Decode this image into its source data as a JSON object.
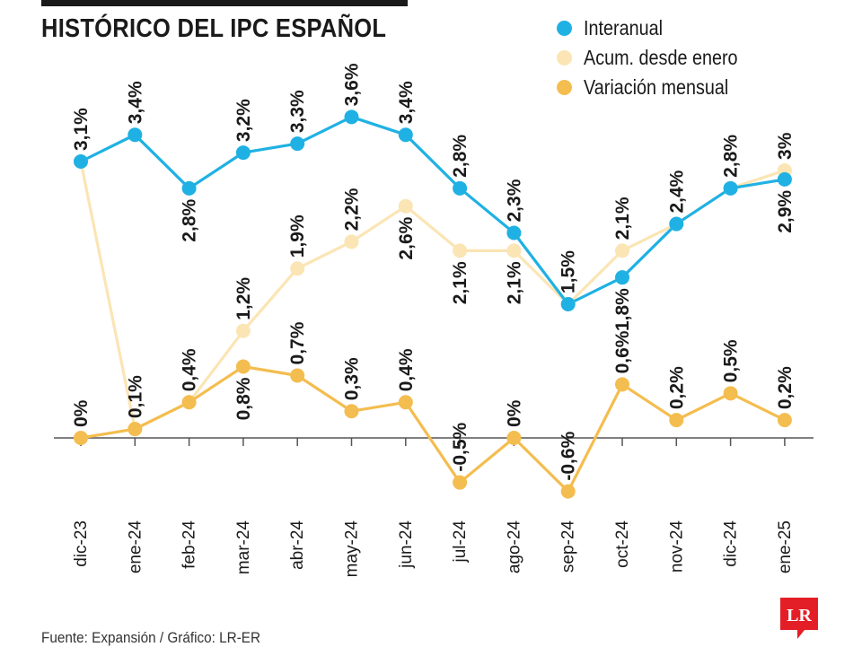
{
  "title": "HISTÓRICO DEL IPC ESPAÑOL",
  "source": "Fuente: Expansión / Gráfico: LR-ER",
  "logo_text": "LR",
  "colors": {
    "interanual": "#1fb1e3",
    "acumulado": "#fbe5b4",
    "mensual": "#f4bd4f",
    "logo": "#e41e26"
  },
  "chart_data": {
    "type": "line",
    "categories": [
      "dic-23",
      "ene-24",
      "feb-24",
      "mar-24",
      "abr-24",
      "may-24",
      "jun-24",
      "jul-24",
      "ago-24",
      "sep-24",
      "oct-24",
      "nov-24",
      "dic-24",
      "ene-25"
    ],
    "ylim": [
      -0.7,
      3.7
    ],
    "grid": false,
    "legend_position": "top-right",
    "series": [
      {
        "name": "Interanual",
        "color": "#1fb1e3",
        "values": [
          3.1,
          3.4,
          2.8,
          3.2,
          3.3,
          3.6,
          3.4,
          2.8,
          2.3,
          1.5,
          1.8,
          2.4,
          2.8,
          2.9
        ],
        "labels": [
          "3,1%",
          "3,4%",
          "2,8%",
          "3,2%",
          "3,3%",
          "3,6%",
          "3,4%",
          "2,8%",
          "2,3%",
          "1,5%",
          "1,8%",
          "2,4%",
          "2,8%",
          "2,9%"
        ]
      },
      {
        "name": "Acum. desde enero",
        "color": "#fbe5b4",
        "values": [
          3.1,
          0.1,
          0.4,
          1.2,
          1.9,
          2.2,
          2.6,
          2.1,
          2.1,
          1.5,
          2.1,
          2.4,
          2.8,
          3.0
        ],
        "labels": [
          "",
          "",
          "",
          "1,2%",
          "1,9%",
          "2,2%",
          "2,6%",
          "2,1%",
          "2,1%",
          "",
          "2,1%",
          "",
          "",
          "3%"
        ]
      },
      {
        "name": "Variación mensual",
        "color": "#f4bd4f",
        "values": [
          0,
          0.1,
          0.4,
          0.8,
          0.7,
          0.3,
          0.4,
          -0.5,
          0,
          -0.6,
          0.6,
          0.2,
          0.5,
          0.2
        ],
        "labels": [
          "0%",
          "0,1%",
          "0,4%",
          "0,8%",
          "0,7%",
          "0,3%",
          "0,4%",
          "-0,5%",
          "0%",
          "-0,6%",
          "0,6%",
          "0,2%",
          "0,5%",
          "0,2%"
        ]
      }
    ]
  }
}
